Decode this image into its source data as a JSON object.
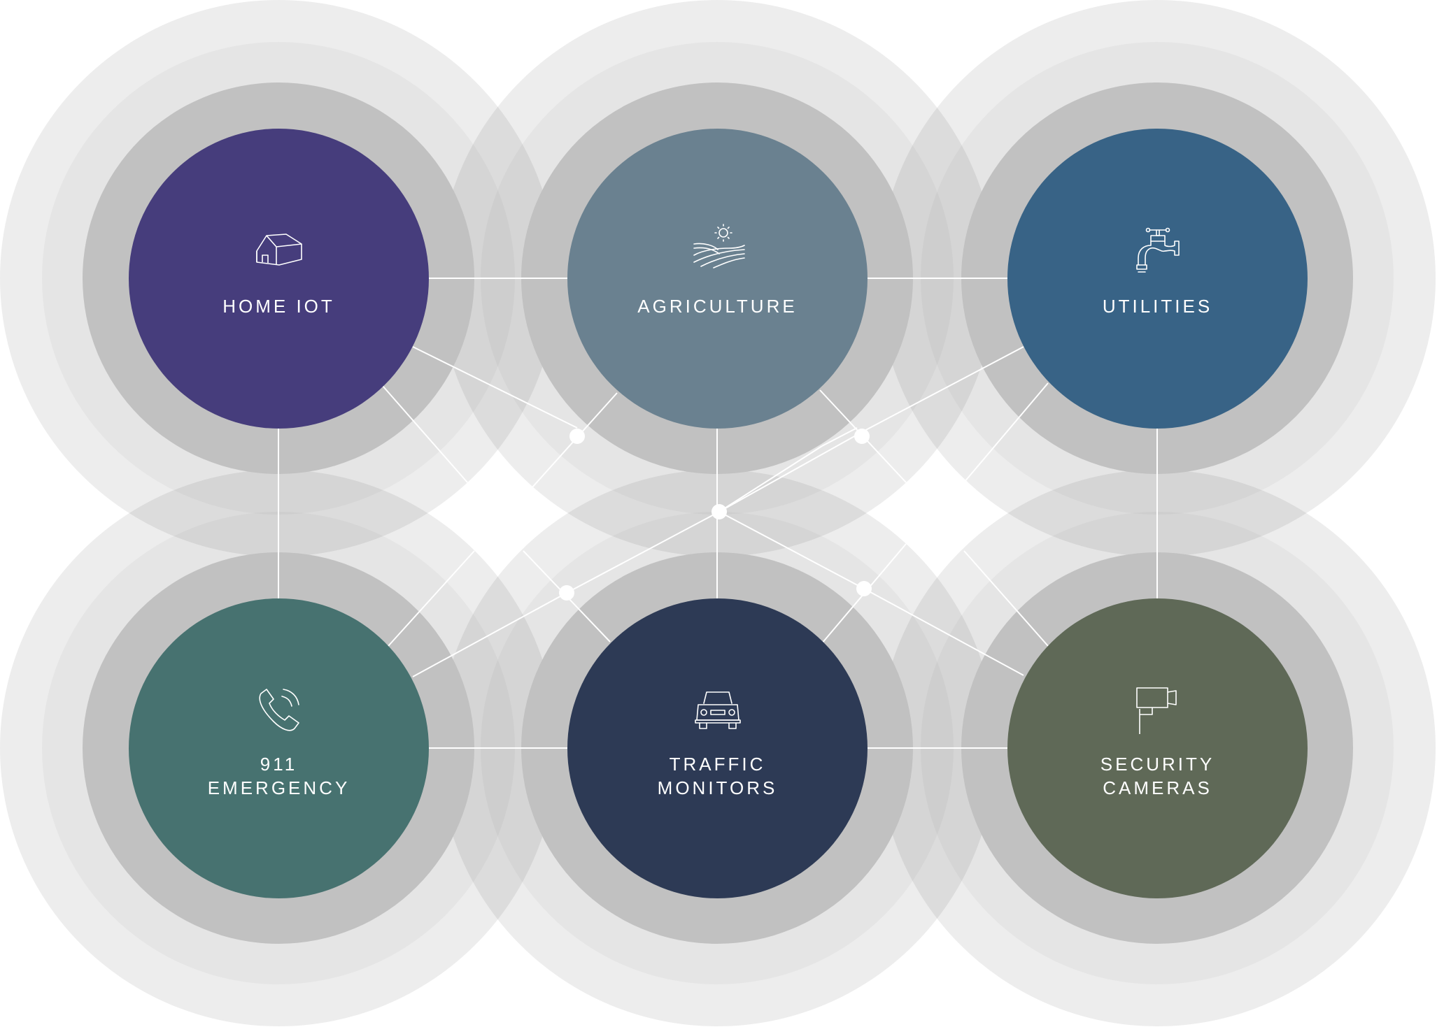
{
  "colors": {
    "outer_ring": "#ececec",
    "outer_ring_inner": "#f1f1f1",
    "inner_ring": "#c1c1c1",
    "connector": "#ffffff"
  },
  "nodes": [
    {
      "id": "home-iot",
      "label": "HOME IOT",
      "icon": "house-icon",
      "color": "#463d7c"
    },
    {
      "id": "agriculture",
      "label": "AGRICULTURE",
      "icon": "farm-field-icon",
      "color": "#6a8190"
    },
    {
      "id": "utilities",
      "label": "UTILITIES",
      "icon": "faucet-icon",
      "color": "#386386"
    },
    {
      "id": "911-emergency",
      "label": "911\nEMERGENCY",
      "icon": "phone-icon",
      "color": "#477270"
    },
    {
      "id": "traffic-monitors",
      "label": "TRAFFIC\nMONITORS",
      "icon": "car-icon",
      "color": "#2d3a55"
    },
    {
      "id": "security-cameras",
      "label": "SECURITY\nCAMERAS",
      "icon": "security-camera-icon",
      "color": "#5f6957"
    }
  ]
}
